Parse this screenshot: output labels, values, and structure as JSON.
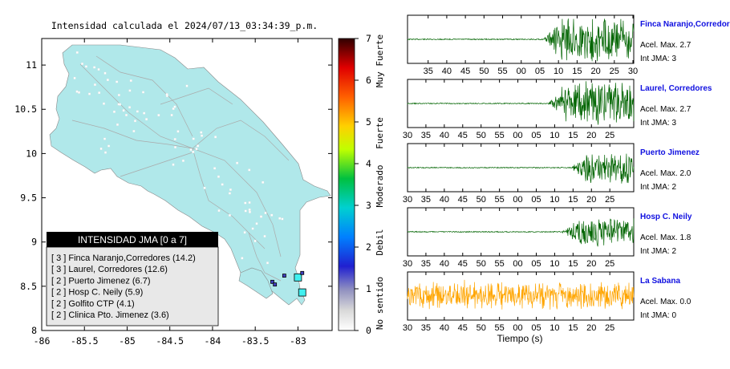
{
  "map": {
    "title": "Intensidad calculada el 2024/07/13_03:34:39_p.m.",
    "x_ticks": [
      "-86",
      "-85.5",
      "-85",
      "-84.5",
      "-84",
      "-83.5",
      "-83"
    ],
    "y_ticks": [
      "11",
      "10.5",
      "10",
      "9.5",
      "9",
      "8.5",
      "8"
    ],
    "legend_title": "INTENSIDAD JMA [0 a 7]",
    "legend_items": [
      "[ 3 ]  Finca Naranjo,Corredores (14.2)",
      "[ 3 ]  Laurel, Corredores (12.6)",
      "[ 2 ]  Puerto Jimenez (6.7)",
      "[ 2 ]  Hosp C. Neily (5.9)",
      "[ 2 ]  Golfito CTP (4.1)",
      "[ 2 ]  Clinica Pto. Jimenez (3.6)"
    ],
    "land_color": "#b0e8ea",
    "stations": [
      {
        "name": "Finca Naranjo,Corredores",
        "lon": -82.95,
        "lat": 8.43,
        "intensity": 3
      },
      {
        "name": "Laurel, Corredores",
        "lon": -83.0,
        "lat": 8.6,
        "intensity": 3
      },
      {
        "name": "Puerto Jimenez",
        "lon": -83.3,
        "lat": 8.55,
        "intensity": 2
      },
      {
        "name": "Hosp C. Neily",
        "lon": -82.95,
        "lat": 8.65,
        "intensity": 2
      },
      {
        "name": "Golfito CTP",
        "lon": -83.16,
        "lat": 8.62,
        "intensity": 2
      },
      {
        "name": "Clinica Pto. Jimenez",
        "lon": -83.27,
        "lat": 8.52,
        "intensity": 2
      }
    ]
  },
  "colorbar": {
    "ticks": [
      "7",
      "6",
      "5",
      "4",
      "3",
      "2",
      "1",
      "0"
    ],
    "labels": [
      "Muy Fuerte",
      "Fuerte",
      "Moderado",
      "Debil",
      "No sentido"
    ]
  },
  "chart_data": {
    "type": "line",
    "xlabel": "Tiempo (s)",
    "traces": [
      {
        "station": "Finca Naranjo,Corredor",
        "acel_label": "Acel. Max. 2.7",
        "int_label": "Int JMA: 3",
        "color": "#006400",
        "onset_fraction": 0.6,
        "amplitude": 2.7,
        "x_ticks": [
          "35",
          "40",
          "45",
          "50",
          "55",
          "00",
          "05",
          "10",
          "15",
          "20",
          "25",
          "30"
        ]
      },
      {
        "station": "Laurel, Corredores",
        "acel_label": "Acel. Max. 2.7",
        "int_label": "Int JMA: 3",
        "color": "#006400",
        "onset_fraction": 0.62,
        "amplitude": 2.7,
        "x_ticks": [
          "30",
          "35",
          "40",
          "45",
          "50",
          "55",
          "00",
          "05",
          "10",
          "15",
          "20",
          "25"
        ]
      },
      {
        "station": "Puerto Jimenez",
        "acel_label": "Acel. Max. 2.0",
        "int_label": "Int JMA: 2",
        "color": "#006400",
        "onset_fraction": 0.72,
        "amplitude": 2.0,
        "x_ticks": [
          "30",
          "35",
          "40",
          "45",
          "50",
          "55",
          "00",
          "05",
          "10",
          "15",
          "20",
          "25"
        ]
      },
      {
        "station": "Hosp C. Neily",
        "acel_label": "Acel. Max. 1.8",
        "int_label": "Int JMA: 2",
        "color": "#006400",
        "onset_fraction": 0.68,
        "amplitude": 1.8,
        "x_ticks": [
          "30",
          "35",
          "40",
          "45",
          "50",
          "55",
          "00",
          "05",
          "10",
          "15",
          "20",
          "25"
        ]
      },
      {
        "station": "La Sabana",
        "acel_label": "Acel. Max. 0.0",
        "int_label": "Int JMA: 0",
        "color": "#ffa500",
        "onset_fraction": 0.0,
        "amplitude": 0.0,
        "x_ticks": [
          "30",
          "35",
          "40",
          "45",
          "50",
          "55",
          "00",
          "05",
          "10",
          "15",
          "20",
          "25"
        ]
      }
    ]
  }
}
